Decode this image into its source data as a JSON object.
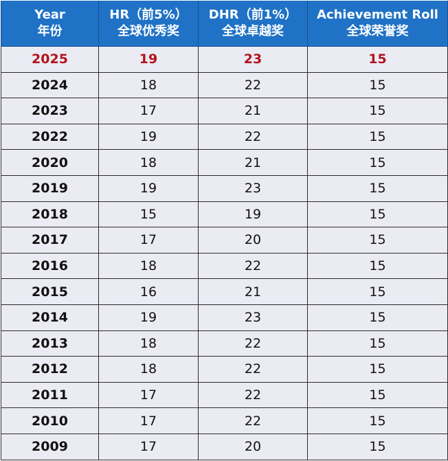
{
  "headers": [
    {
      "line1": "Year",
      "line2": "年份"
    },
    {
      "line1": "HR（前5%）",
      "line2": "全球优秀奖"
    },
    {
      "line1": "DHR（前1%）",
      "line2": "全球卓越奖"
    },
    {
      "line1": "Achievement Roll",
      "line2": "全球荣誉奖"
    }
  ],
  "highlight_color": "#b3141c",
  "header_color": "#1f72c6",
  "rows": [
    [
      "2025",
      "19",
      "23",
      "15"
    ],
    [
      "2024",
      "18",
      "22",
      "15"
    ],
    [
      "2023",
      "17",
      "21",
      "15"
    ],
    [
      "2022",
      "19",
      "22",
      "15"
    ],
    [
      "2020",
      "18",
      "21",
      "15"
    ],
    [
      "2019",
      "19",
      "23",
      "15"
    ],
    [
      "2018",
      "15",
      "19",
      "15"
    ],
    [
      "2017",
      "17",
      "20",
      "15"
    ],
    [
      "2016",
      "18",
      "22",
      "15"
    ],
    [
      "2015",
      "16",
      "21",
      "15"
    ],
    [
      "2014",
      "19",
      "23",
      "15"
    ],
    [
      "2013",
      "18",
      "22",
      "15"
    ],
    [
      "2012",
      "18",
      "22",
      "15"
    ],
    [
      "2011",
      "17",
      "22",
      "15"
    ],
    [
      "2010",
      "17",
      "22",
      "15"
    ],
    [
      "2009",
      "17",
      "20",
      "15"
    ]
  ]
}
